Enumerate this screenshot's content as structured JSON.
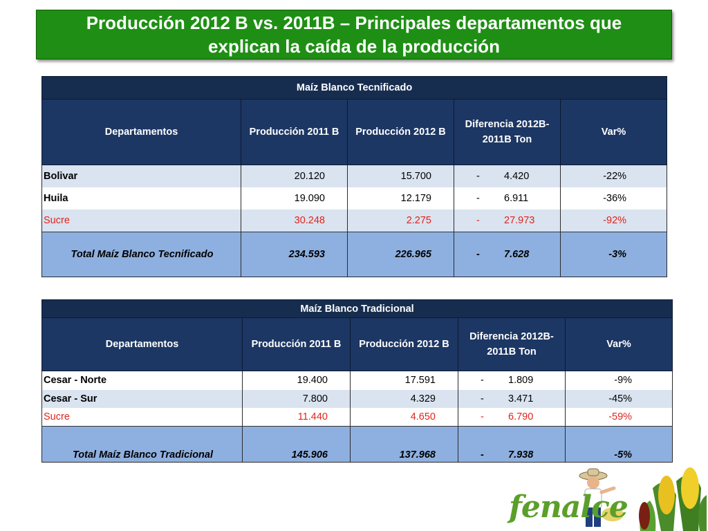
{
  "title": {
    "line1": "Producción 2012 B vs. 2011B – Principales departamentos que",
    "line2": "explican la caída de la producción"
  },
  "colors": {
    "banner": "#1e8f14",
    "header": "#1d3764",
    "highlight_red": "#e1231a",
    "total_row": "#8eb0e0"
  },
  "table1": {
    "caption": "Maíz Blanco Tecnificado",
    "headers": [
      "Departamentos",
      "Producción  2011 B",
      "Producción  2012 B",
      "Diferencia 2012B-2011B Ton",
      "Var%"
    ],
    "rows": [
      {
        "dept": "Bolivar",
        "p2011": "20.120",
        "p2012": "15.700",
        "sign": "-",
        "diff": "4.420",
        "var": "-22%"
      },
      {
        "dept": "Huila",
        "p2011": "19.090",
        "p2012": "12.179",
        "sign": "-",
        "diff": "6.911",
        "var": "-36%"
      },
      {
        "dept": "Sucre",
        "p2011": "30.248",
        "p2012": "2.275",
        "sign": "-",
        "diff": "27.973",
        "var": "-92%"
      }
    ],
    "total": {
      "dept": "Total Maíz Blanco  Tecnificado",
      "p2011": "234.593",
      "p2012": "226.965",
      "sign": "-",
      "diff": "7.628",
      "var": "-3%"
    }
  },
  "table2": {
    "caption": "Maíz Blanco Tradicional",
    "headers": [
      "Departamentos",
      "Producción  2011 B",
      "Producción  2012 B",
      "Diferencia 2012B-2011B Ton",
      "Var%"
    ],
    "rows": [
      {
        "dept": "Cesar - Norte",
        "p2011": "19.400",
        "p2012": "17.591",
        "sign": "-",
        "diff": "1.809",
        "var": "-9%"
      },
      {
        "dept": "Cesar - Sur",
        "p2011": "7.800",
        "p2012": "4.329",
        "sign": "-",
        "diff": "3.471",
        "var": "-45%"
      },
      {
        "dept": "Sucre",
        "p2011": "11.440",
        "p2012": "4.650",
        "sign": "-",
        "diff": "6.790",
        "var": "-59%"
      }
    ],
    "total": {
      "dept": "Total Maíz Blanco Tradicional",
      "p2011": "145.906",
      "p2012": "137.968",
      "sign": "-",
      "diff": "7.938",
      "var": "-5%"
    }
  },
  "logo": {
    "text": "fenalce"
  }
}
